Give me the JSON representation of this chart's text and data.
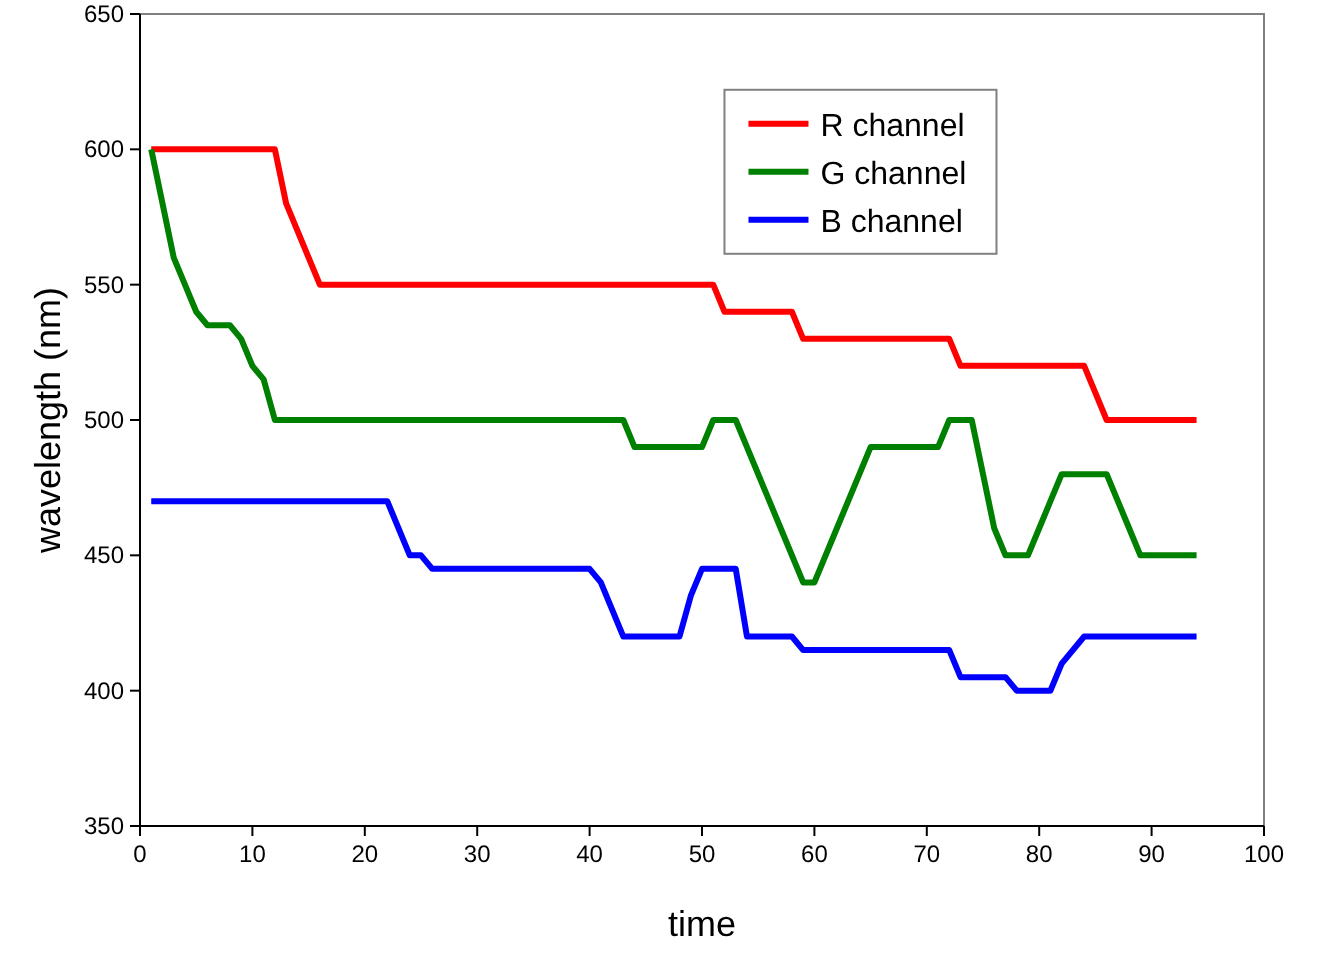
{
  "chart_data": {
    "type": "line",
    "xlabel": "time",
    "ylabel": "wavelength (nm)",
    "xlim": [
      0,
      100
    ],
    "xticks": [
      0,
      10,
      20,
      30,
      40,
      50,
      60,
      70,
      80,
      90,
      100
    ],
    "ylim": [
      350,
      650
    ],
    "yticks": [
      350,
      400,
      450,
      500,
      550,
      600,
      650
    ],
    "legend": "top right",
    "grid": false,
    "marker": "none",
    "line_style": "solid",
    "series": [
      {
        "name": "R channel",
        "color": "#ff0000",
        "x": [
          1,
          12,
          13,
          16,
          51,
          52,
          58,
          59,
          72,
          73,
          84,
          85,
          86,
          94
        ],
        "values": [
          600,
          600,
          580,
          550,
          550,
          540,
          540,
          530,
          530,
          520,
          520,
          510,
          500,
          500
        ]
      },
      {
        "name": "G channel",
        "color": "#008000",
        "x": [
          1,
          2,
          3,
          4,
          5,
          6,
          8,
          9,
          10,
          11,
          12,
          43,
          44,
          50,
          51,
          53,
          54,
          57,
          59,
          60,
          62,
          65,
          71,
          72,
          74,
          75,
          76,
          77,
          79,
          80,
          81,
          82,
          86,
          88,
          89,
          94
        ],
        "values": [
          600,
          580,
          560,
          550,
          540,
          535,
          535,
          530,
          520,
          515,
          500,
          500,
          490,
          490,
          500,
          500,
          490,
          460,
          440,
          440,
          460,
          490,
          490,
          500,
          500,
          480,
          460,
          450,
          450,
          460,
          470,
          480,
          480,
          460,
          450,
          450
        ]
      },
      {
        "name": "B channel",
        "color": "#0000ff",
        "x": [
          1,
          22,
          24,
          25,
          26,
          40,
          41,
          43,
          48,
          49,
          50,
          53,
          54,
          58,
          59,
          72,
          73,
          77,
          78,
          81,
          82,
          84,
          94
        ],
        "values": [
          470,
          470,
          450,
          450,
          445,
          445,
          440,
          420,
          420,
          435,
          445,
          445,
          420,
          420,
          415,
          415,
          405,
          405,
          400,
          400,
          410,
          420,
          420
        ]
      }
    ]
  }
}
